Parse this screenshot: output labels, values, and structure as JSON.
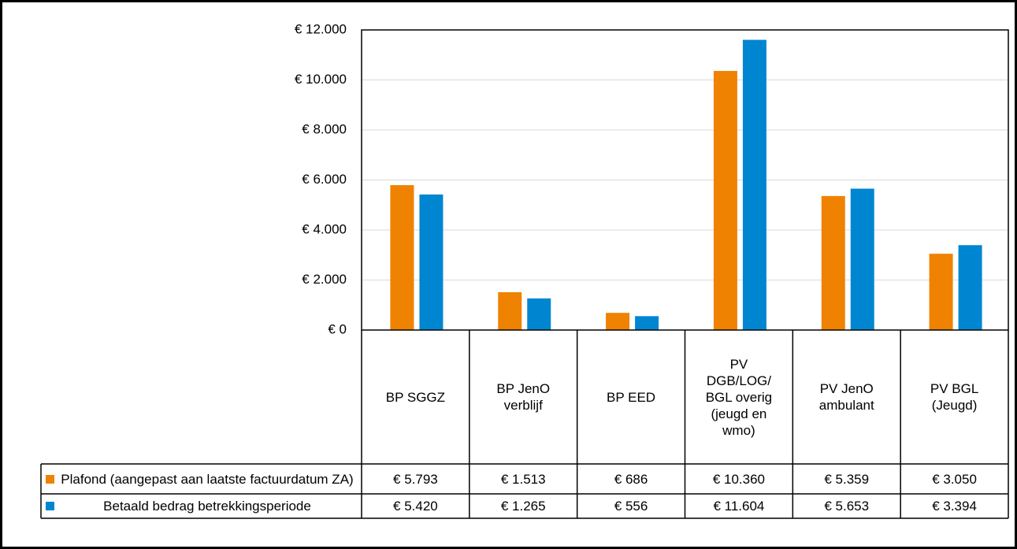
{
  "chart_data": {
    "type": "bar",
    "categories": [
      "BP SGGZ",
      "BP JenO verblijf",
      "BP EED",
      "PV DGB/LOG/ BGL overig (jeugd en wmo)",
      "PV JenO ambulant",
      "PV BGL (Jeugd)"
    ],
    "series": [
      {
        "name": "Plafond (aangepast aan laatste factuurdatum ZA)",
        "color": "#ef8200",
        "values": [
          5793,
          1513,
          686,
          10360,
          5359,
          3050
        ],
        "value_labels": [
          "€ 5.793",
          "€ 1.513",
          "€ 686",
          "€ 10.360",
          "€ 5.359",
          "€ 3.050"
        ]
      },
      {
        "name": "Betaald bedrag betrekkingsperiode",
        "color": "#0086d1",
        "values": [
          5420,
          1265,
          556,
          11604,
          5653,
          3394
        ],
        "value_labels": [
          "€ 5.420",
          "€ 1.265",
          "€ 556",
          "€ 11.604",
          "€ 5.653",
          "€ 3.394"
        ]
      }
    ],
    "ylim": [
      0,
      12000
    ],
    "yticks": [
      {
        "value": 0,
        "label": "€ 0"
      },
      {
        "value": 2000,
        "label": "€ 2.000"
      },
      {
        "value": 4000,
        "label": "€ 4.000"
      },
      {
        "value": 6000,
        "label": "€ 6.000"
      },
      {
        "value": 8000,
        "label": "€ 8.000"
      },
      {
        "value": 10000,
        "label": "€ 10.000"
      },
      {
        "value": 12000,
        "label": "€ 12.000"
      }
    ],
    "grid": true
  }
}
